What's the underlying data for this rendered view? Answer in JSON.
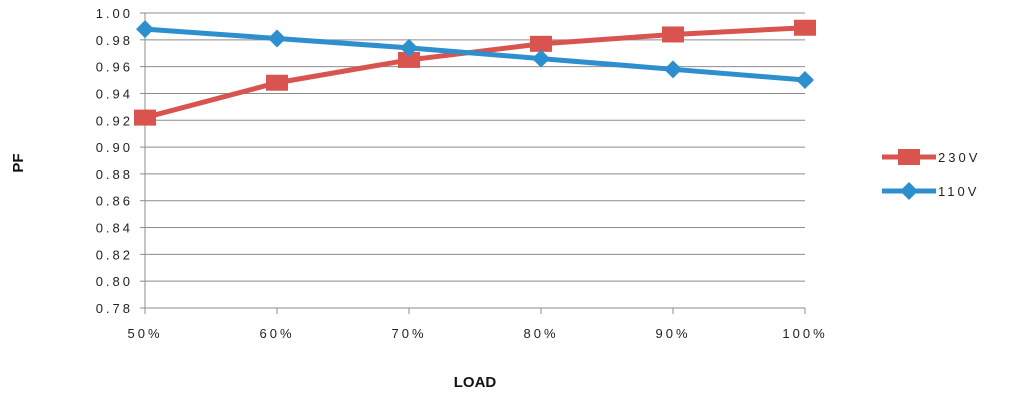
{
  "chart_data": {
    "type": "line",
    "title": "",
    "xlabel": "LOAD",
    "ylabel": "PF",
    "categories": [
      "50%",
      "60%",
      "70%",
      "80%",
      "90%",
      "100%"
    ],
    "y_tick_labels": [
      "0.78",
      "0.80",
      "0.82",
      "0.84",
      "0.86",
      "0.88",
      "0.90",
      "0.92",
      "0.94",
      "0.96",
      "0.98",
      "1.00"
    ],
    "ylim": [
      0.78,
      1.0
    ],
    "grid": "horizontal",
    "legend_position": "right",
    "series": [
      {
        "name": "230V",
        "color": "#d9534f",
        "marker": "square",
        "values": [
          0.922,
          0.948,
          0.965,
          0.977,
          0.984,
          0.989
        ]
      },
      {
        "name": "110V",
        "color": "#2e8fce",
        "marker": "diamond",
        "values": [
          0.988,
          0.981,
          0.974,
          0.966,
          0.958,
          0.95
        ]
      }
    ]
  }
}
